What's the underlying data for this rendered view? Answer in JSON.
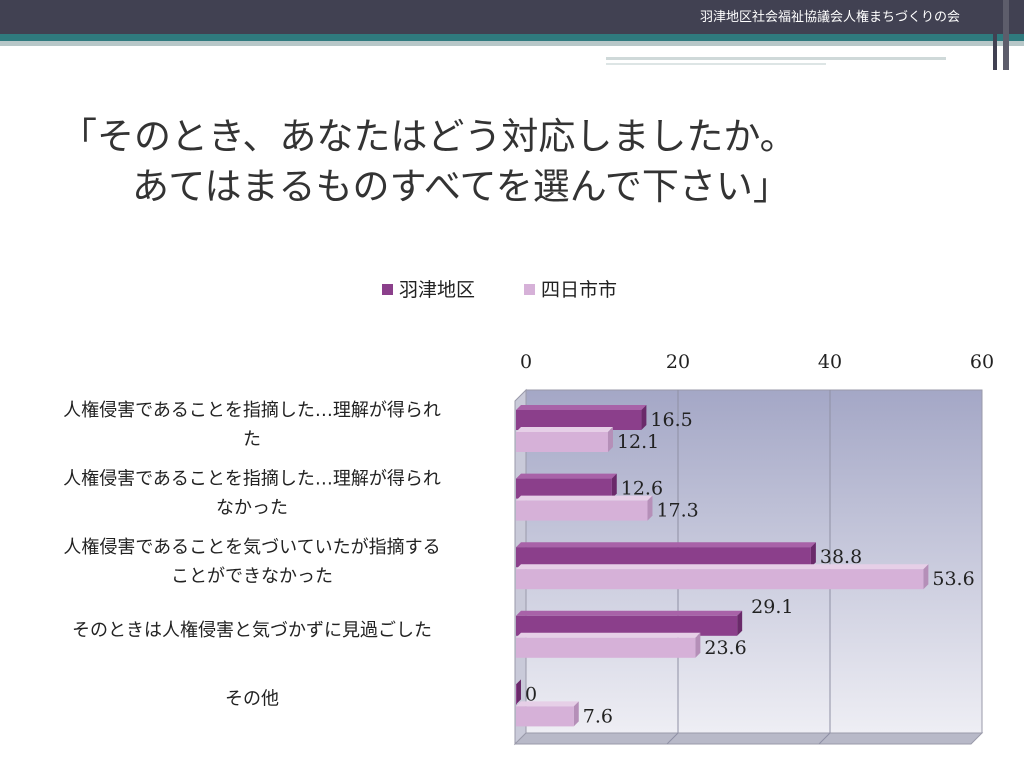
{
  "header": {
    "org_name": "羽津地区社会福祉協議会人権まちづくりの会"
  },
  "slide": {
    "title_line1": "「そのとき、あなたはどう対応しましたか。",
    "title_line2": "あてはまるものすべてを選んで下さい」"
  },
  "colors": {
    "series1": "#8b3f8b",
    "series2": "#d6b1d8",
    "plot_top": "#a4a7c6",
    "plot_bottom": "#eeeef4",
    "topbar": "#414152",
    "teal": "#2f7a7e"
  },
  "chart_data": {
    "type": "bar",
    "orientation": "horizontal",
    "style": "3d",
    "title": "",
    "xlabel": "",
    "ylabel": "",
    "xlim": [
      0,
      60
    ],
    "ticks": [
      0,
      20,
      40,
      60
    ],
    "grid": true,
    "legend_position": "top",
    "categories": [
      [
        "人権侵害であることを指摘した…理解が得られ",
        "た"
      ],
      [
        "人権侵害であることを指摘した…理解が得られ",
        "なかった"
      ],
      [
        "人権侵害であることを気づいていたが指摘する",
        "ことができなかった"
      ],
      [
        "そのときは人権侵害と気づかずに見過ごした"
      ],
      [
        "その他"
      ]
    ],
    "series": [
      {
        "name": "羽津地区",
        "values": [
          16.5,
          12.6,
          38.8,
          29.1,
          0
        ]
      },
      {
        "name": "四日市市",
        "values": [
          12.1,
          17.3,
          53.6,
          23.6,
          7.6
        ]
      }
    ]
  }
}
